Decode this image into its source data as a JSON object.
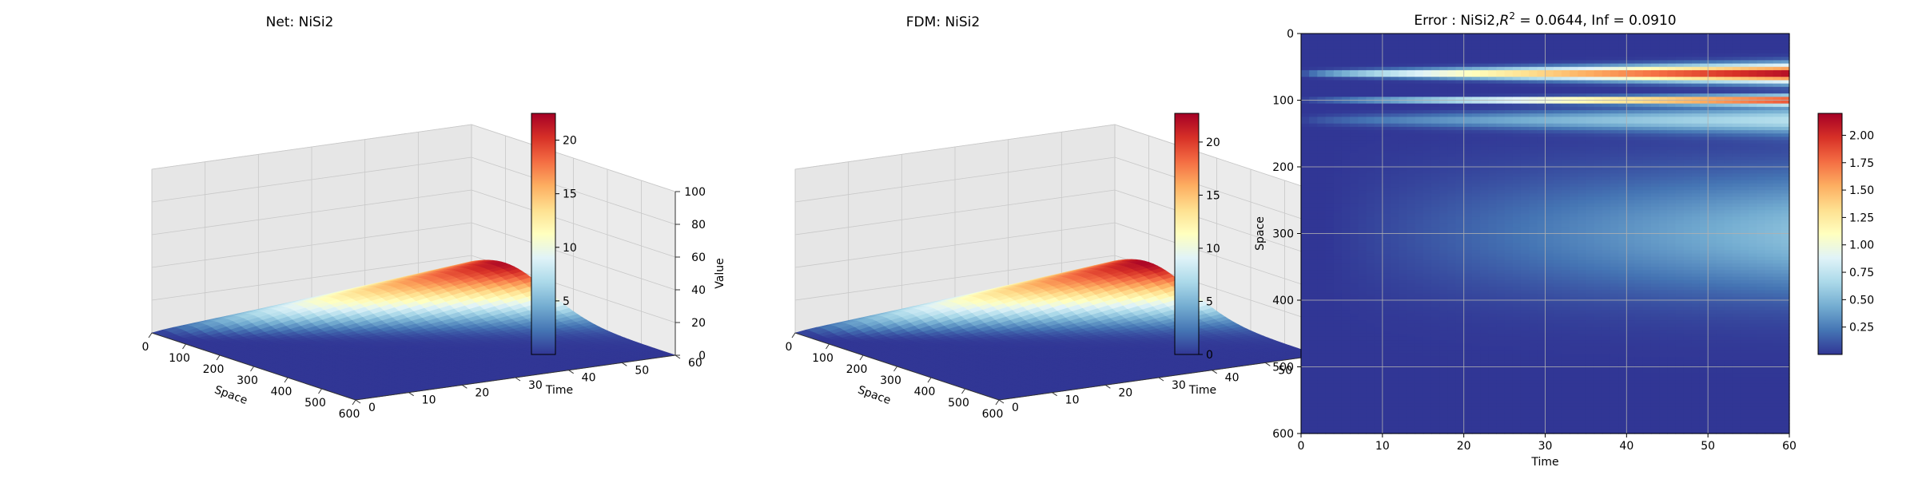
{
  "chart_data": [
    {
      "type": "surface",
      "title": "Net: NiSi2",
      "xlabel": "Space",
      "ylabel": "Time",
      "zlabel": "Value",
      "x_ticks": [
        "0",
        "100",
        "200",
        "300",
        "400",
        "500",
        "600"
      ],
      "y_ticks": [
        "0",
        "10",
        "20",
        "30",
        "40",
        "50",
        "60"
      ],
      "z_ticks": [
        "0",
        "20",
        "40",
        "60",
        "80",
        "100"
      ],
      "xlim": [
        0,
        600
      ],
      "ylim": [
        0,
        60
      ],
      "zlim": [
        0,
        100
      ],
      "peak": {
        "space": 100,
        "time": 60,
        "value": 22
      },
      "colormap": "RdYlBu_r",
      "colorbar": {
        "ticks": [
          "5",
          "10",
          "15",
          "20"
        ],
        "min": 0,
        "max": 22.5
      }
    },
    {
      "type": "surface",
      "title": "FDM: NiSi2",
      "xlabel": "Space",
      "ylabel": "Time",
      "zlabel": "Value",
      "x_ticks": [
        "0",
        "100",
        "200",
        "300",
        "400",
        "500",
        "600"
      ],
      "y_ticks": [
        "0",
        "10",
        "20",
        "30",
        "40",
        "50",
        "60"
      ],
      "z_ticks": [
        "0",
        "20",
        "40",
        "60",
        "80",
        "100"
      ],
      "xlim": [
        0,
        600
      ],
      "ylim": [
        0,
        60
      ],
      "zlim": [
        0,
        100
      ],
      "peak": {
        "space": 100,
        "time": 60,
        "value": 22.5
      },
      "colormap": "RdYlBu_r",
      "colorbar": {
        "ticks": [
          "0",
          "5",
          "10",
          "15",
          "20"
        ],
        "min": 0,
        "max": 22.7
      }
    },
    {
      "type": "heatmap",
      "title_prefix": "Error : NiSi2,",
      "title_r2_symbol": "R",
      "title_r2_exp": "2",
      "title_suffix": " = 0.0644, Inf = 0.0910",
      "xlabel": "Time",
      "ylabel": "Space",
      "x_ticks": [
        "0",
        "10",
        "20",
        "30",
        "40",
        "50",
        "60"
      ],
      "y_ticks": [
        "0",
        "100",
        "200",
        "300",
        "400",
        "500",
        "600"
      ],
      "xlim": [
        0,
        60
      ],
      "ylim": [
        600,
        0
      ],
      "grid": true,
      "colormap": "RdYlBu_r",
      "colorbar": {
        "ticks": [
          "0.25",
          "0.50",
          "0.75",
          "1.00",
          "1.25",
          "1.50",
          "1.75",
          "2.00"
        ],
        "min": 0,
        "max": 2.2
      },
      "error_bands": [
        {
          "space_center": 60,
          "space_halfwidth": 12,
          "peak": 2.2
        },
        {
          "space_center": 100,
          "space_halfwidth": 6,
          "peak": 2.0
        },
        {
          "space_center": 130,
          "space_halfwidth": 18,
          "peak": 0.7
        },
        {
          "space_center": 300,
          "space_halfwidth": 90,
          "peak": 0.55
        }
      ]
    }
  ]
}
